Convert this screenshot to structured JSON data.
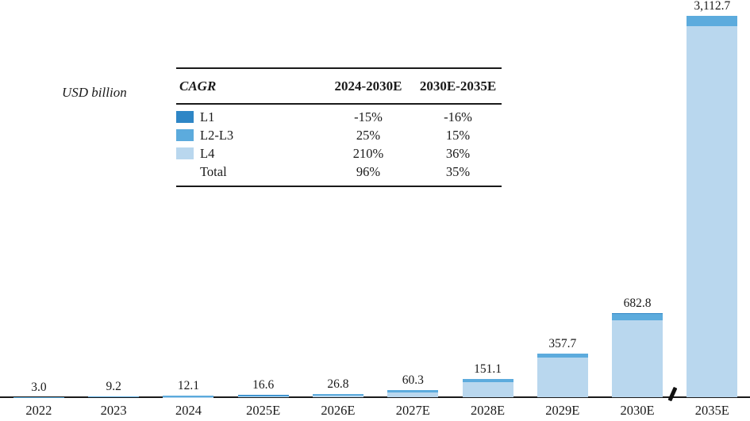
{
  "ylabel": "USD billion",
  "cagr_table": {
    "title": "CAGR",
    "columns": [
      "2024-2030E",
      "2030E-2035E"
    ],
    "rows": [
      {
        "label": "L1",
        "swatch": "#2E86C6",
        "values": [
          "-15%",
          "-16%"
        ]
      },
      {
        "label": "L2-L3",
        "swatch": "#5CABDD",
        "values": [
          "25%",
          "15%"
        ]
      },
      {
        "label": "L4",
        "swatch": "#B9D7EE",
        "values": [
          "210%",
          "36%"
        ]
      },
      {
        "label": "Total",
        "swatch": null,
        "values": [
          "96%",
          "35%"
        ]
      }
    ]
  },
  "chart_data": {
    "type": "bar",
    "stacked": true,
    "ylabel": "USD billion",
    "categories": [
      "2022",
      "2023",
      "2024",
      "2025E",
      "2026E",
      "2027E",
      "2028E",
      "2029E",
      "2030E",
      "2035E"
    ],
    "totals": [
      3.0,
      9.2,
      12.1,
      16.6,
      26.8,
      60.3,
      151.1,
      357.7,
      682.8,
      3112.7
    ],
    "total_labels": [
      "3.0",
      "9.2",
      "12.1",
      "16.6",
      "26.8",
      "60.3",
      "151.1",
      "357.7",
      "682.8",
      "3,112.7"
    ],
    "series": [
      {
        "name": "L1",
        "color": "#2E86C6",
        "estimated": true,
        "values": [
          0.5,
          0.7,
          0.8,
          0.7,
          0.6,
          0.5,
          0.45,
          0.4,
          0.35,
          0.15
        ]
      },
      {
        "name": "L2-L3",
        "color": "#5CABDD",
        "estimated": true,
        "values": [
          2.5,
          8.3,
          10.2,
          11.9,
          14.2,
          18.8,
          25.65,
          31.3,
          57.45,
          83.55
        ]
      },
      {
        "name": "L4",
        "color": "#B9D7EE",
        "estimated": true,
        "values": [
          0.0,
          0.2,
          1.1,
          4.0,
          12.0,
          41.0,
          125.0,
          326.0,
          625.0,
          3029.0
        ]
      }
    ],
    "legend_position": "top-left-table",
    "grid": false,
    "ylim": [
      0,
      3200
    ],
    "axis_break": {
      "between": [
        "2030E",
        "2035E"
      ],
      "symbol": "/"
    }
  }
}
